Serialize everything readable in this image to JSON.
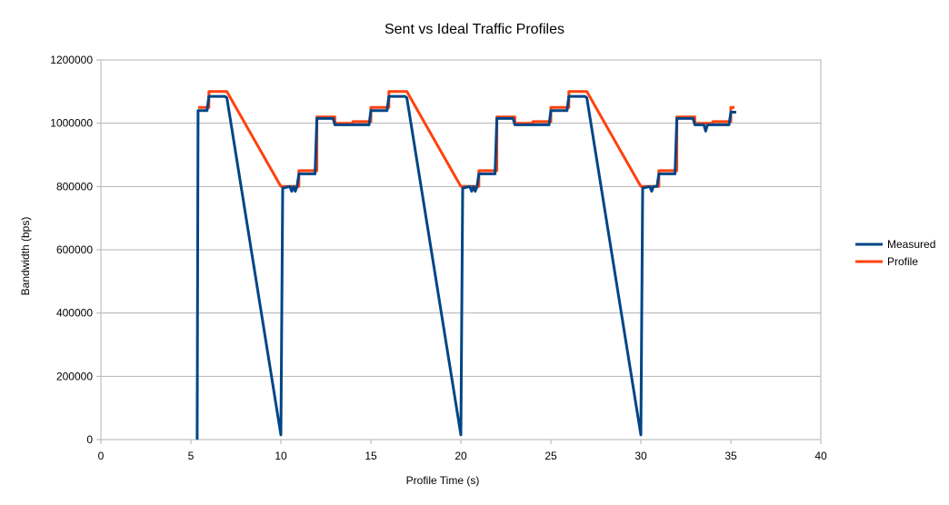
{
  "chart_data": {
    "type": "line",
    "title": "Sent vs Ideal Traffic Profiles",
    "xlabel": "Profile Time (s)",
    "ylabel": "Bandwidth (bps)",
    "xlim": [
      0,
      40
    ],
    "ylim": [
      0,
      1200000
    ],
    "x_ticks": [
      0,
      5,
      10,
      15,
      20,
      25,
      30,
      35,
      40
    ],
    "y_ticks": [
      0,
      200000,
      400000,
      600000,
      800000,
      1000000,
      1200000
    ],
    "x_tick_labels": [
      "0",
      "5",
      "10",
      "15",
      "20",
      "25",
      "30",
      "35",
      "40"
    ],
    "y_tick_labels": [
      "0",
      "200000",
      "400000",
      "600000",
      "800000",
      "1000000",
      "1200000"
    ],
    "grid": "horizontal",
    "legend": "right",
    "series": [
      {
        "name": "Measured",
        "color": "#004586",
        "points": [
          [
            5.35,
            0
          ],
          [
            5.4,
            1040000
          ],
          [
            5.9,
            1040000
          ],
          [
            6.0,
            1085000
          ],
          [
            6.9,
            1085000
          ],
          [
            7.0,
            1080000
          ],
          [
            10.0,
            15000
          ],
          [
            10.1,
            795000
          ],
          [
            10.5,
            800000
          ],
          [
            10.6,
            785000
          ],
          [
            10.7,
            800000
          ],
          [
            10.8,
            785000
          ],
          [
            10.9,
            800000
          ],
          [
            11.0,
            840000
          ],
          [
            11.9,
            840000
          ],
          [
            12.0,
            1015000
          ],
          [
            12.9,
            1015000
          ],
          [
            13.0,
            995000
          ],
          [
            13.9,
            995000
          ],
          [
            14.0,
            995000
          ],
          [
            14.9,
            995000
          ],
          [
            15.0,
            1040000
          ],
          [
            15.9,
            1040000
          ],
          [
            16.0,
            1085000
          ],
          [
            16.9,
            1085000
          ],
          [
            17.0,
            1080000
          ],
          [
            20.0,
            15000
          ],
          [
            20.1,
            795000
          ],
          [
            20.5,
            800000
          ],
          [
            20.6,
            785000
          ],
          [
            20.7,
            800000
          ],
          [
            20.8,
            785000
          ],
          [
            20.9,
            800000
          ],
          [
            21.0,
            840000
          ],
          [
            21.9,
            840000
          ],
          [
            22.0,
            1015000
          ],
          [
            22.9,
            1015000
          ],
          [
            23.0,
            995000
          ],
          [
            23.9,
            995000
          ],
          [
            24.0,
            995000
          ],
          [
            24.9,
            995000
          ],
          [
            25.0,
            1040000
          ],
          [
            25.9,
            1040000
          ],
          [
            26.0,
            1085000
          ],
          [
            26.9,
            1085000
          ],
          [
            27.0,
            1080000
          ],
          [
            30.0,
            15000
          ],
          [
            30.1,
            795000
          ],
          [
            30.5,
            800000
          ],
          [
            30.6,
            785000
          ],
          [
            30.7,
            800000
          ],
          [
            30.9,
            800000
          ],
          [
            31.0,
            840000
          ],
          [
            31.9,
            840000
          ],
          [
            32.0,
            1015000
          ],
          [
            32.9,
            1015000
          ],
          [
            33.0,
            995000
          ],
          [
            33.5,
            995000
          ],
          [
            33.6,
            975000
          ],
          [
            33.7,
            995000
          ],
          [
            34.9,
            995000
          ],
          [
            35.0,
            1035000
          ],
          [
            35.3,
            1035000
          ]
        ]
      },
      {
        "name": "Profile",
        "color": "#ff420e",
        "points": [
          [
            5.4,
            1050000
          ],
          [
            6.0,
            1050000
          ],
          [
            6.0,
            1100000
          ],
          [
            7.0,
            1100000
          ],
          [
            10.0,
            800000
          ],
          [
            11.0,
            800000
          ],
          [
            11.0,
            850000
          ],
          [
            12.0,
            850000
          ],
          [
            12.0,
            1020000
          ],
          [
            13.0,
            1020000
          ],
          [
            13.0,
            1000000
          ],
          [
            14.0,
            1000000
          ],
          [
            14.0,
            1005000
          ],
          [
            15.0,
            1005000
          ],
          [
            15.0,
            1050000
          ],
          [
            16.0,
            1050000
          ],
          [
            16.0,
            1100000
          ],
          [
            17.0,
            1100000
          ],
          [
            20.0,
            800000
          ],
          [
            21.0,
            800000
          ],
          [
            21.0,
            850000
          ],
          [
            22.0,
            850000
          ],
          [
            22.0,
            1020000
          ],
          [
            23.0,
            1020000
          ],
          [
            23.0,
            1000000
          ],
          [
            24.0,
            1000000
          ],
          [
            24.0,
            1005000
          ],
          [
            25.0,
            1005000
          ],
          [
            25.0,
            1050000
          ],
          [
            26.0,
            1050000
          ],
          [
            26.0,
            1100000
          ],
          [
            27.0,
            1100000
          ],
          [
            30.0,
            800000
          ],
          [
            31.0,
            800000
          ],
          [
            31.0,
            850000
          ],
          [
            32.0,
            850000
          ],
          [
            32.0,
            1020000
          ],
          [
            33.0,
            1020000
          ],
          [
            33.0,
            1000000
          ],
          [
            34.0,
            1000000
          ],
          [
            34.0,
            1005000
          ],
          [
            35.0,
            1005000
          ],
          [
            35.0,
            1050000
          ],
          [
            35.2,
            1050000
          ]
        ]
      }
    ]
  }
}
